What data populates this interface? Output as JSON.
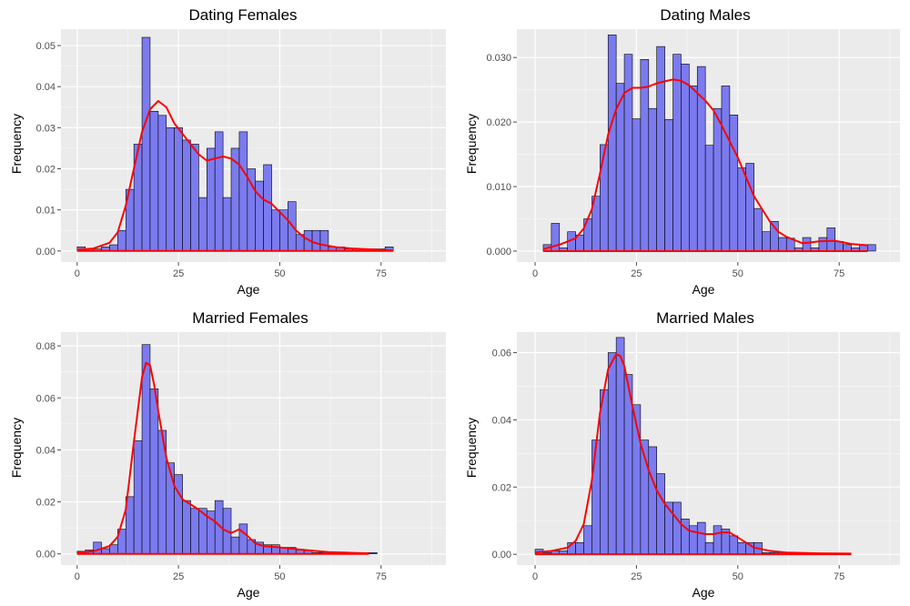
{
  "colors": {
    "panel_background": "#ebebeb",
    "grid_major": "#ffffff",
    "bar_fill": "#7b7bef",
    "bar_outline": "#000000",
    "density_line": "#ff0000",
    "tick": "#4d4d4d"
  },
  "chart_data": [
    {
      "type": "bar",
      "title": "Dating Females",
      "xlabel": "Age",
      "ylabel": "Frequency",
      "xlim": [
        -4,
        91
      ],
      "ylim": [
        -0.0027,
        0.054
      ],
      "xticks": [
        0,
        25,
        50,
        75
      ],
      "yticks": [
        0,
        0.01,
        0.02,
        0.03,
        0.04,
        0.05
      ],
      "ytick_labels": [
        "0.00",
        "0.01",
        "0.02",
        "0.03",
        "0.04",
        "0.05"
      ],
      "grid": true,
      "bin_width": 2,
      "bins_start": [
        0,
        2,
        4,
        6,
        8,
        10,
        12,
        14,
        16,
        18,
        20,
        22,
        24,
        26,
        28,
        30,
        32,
        34,
        36,
        38,
        40,
        42,
        44,
        46,
        48,
        50,
        52,
        54,
        56,
        58,
        60,
        62,
        64,
        66,
        68,
        70,
        72,
        74,
        76,
        78,
        80,
        82,
        84,
        86,
        88
      ],
      "values": [
        0.001,
        0.0005,
        0.0005,
        0.001,
        0.0015,
        0.005,
        0.015,
        0.026,
        0.052,
        0.034,
        0.033,
        0.03,
        0.03,
        0.027,
        0.026,
        0.013,
        0.025,
        0.029,
        0.013,
        0.025,
        0.029,
        0.02,
        0.017,
        0.021,
        0.01,
        0.01,
        0.012,
        0.004,
        0.005,
        0.005,
        0.005,
        0.001,
        0.001,
        0.0005,
        0.0005,
        0.0005,
        0.0005,
        0.0005,
        0.001,
        0,
        0,
        0,
        0,
        0,
        0
      ],
      "density": {
        "x": [
          0,
          4,
          8,
          10,
          12,
          14,
          16,
          18,
          20,
          22,
          24,
          26,
          28,
          30,
          32,
          34,
          36,
          38,
          40,
          42,
          44,
          46,
          48,
          50,
          52,
          54,
          56,
          58,
          60,
          64,
          68,
          72,
          76,
          78
        ],
        "y": [
          0.0003,
          0.0006,
          0.002,
          0.0045,
          0.011,
          0.02,
          0.029,
          0.0345,
          0.0365,
          0.035,
          0.031,
          0.0285,
          0.026,
          0.0235,
          0.022,
          0.0225,
          0.023,
          0.0225,
          0.021,
          0.018,
          0.0145,
          0.0125,
          0.0115,
          0.0095,
          0.0075,
          0.005,
          0.0033,
          0.0022,
          0.0016,
          0.0009,
          0.0006,
          0.0004,
          0.0002,
          0.0001
        ]
      }
    },
    {
      "type": "bar",
      "title": "Dating Males",
      "xlabel": "Age",
      "ylabel": "Frequency",
      "xlim": [
        -4.5,
        90
      ],
      "ylim": [
        -0.0017,
        0.0344
      ],
      "xticks": [
        0,
        25,
        50,
        75
      ],
      "yticks": [
        0,
        0.01,
        0.02,
        0.03
      ],
      "ytick_labels": [
        "0.000",
        "0.010",
        "0.020",
        "0.030"
      ],
      "grid": true,
      "bin_width": 2,
      "bins_start": [
        2,
        4,
        6,
        8,
        10,
        12,
        14,
        16,
        18,
        20,
        22,
        24,
        26,
        28,
        30,
        32,
        34,
        36,
        38,
        40,
        42,
        44,
        46,
        48,
        50,
        52,
        54,
        56,
        58,
        60,
        62,
        64,
        66,
        68,
        70,
        72,
        74,
        76,
        78,
        80,
        82
      ],
      "values": [
        0.001,
        0.0043,
        0.0005,
        0.003,
        0.0025,
        0.005,
        0.0085,
        0.0165,
        0.0335,
        0.026,
        0.0305,
        0.0205,
        0.0297,
        0.0221,
        0.0317,
        0.0204,
        0.0305,
        0.029,
        0.0256,
        0.0286,
        0.0164,
        0.0221,
        0.0256,
        0.0211,
        0.0129,
        0.0136,
        0.0066,
        0.003,
        0.0046,
        0.0021,
        0.002,
        0.0005,
        0.0021,
        0.0005,
        0.0021,
        0.0036,
        0.0015,
        0.001,
        0.0005,
        0.001,
        0.001
      ],
      "density": {
        "x": [
          2,
          6,
          10,
          12,
          14,
          16,
          18,
          20,
          22,
          24,
          26,
          28,
          30,
          32,
          34,
          36,
          38,
          40,
          42,
          44,
          46,
          48,
          50,
          52,
          54,
          56,
          58,
          60,
          62,
          66,
          70,
          74,
          78,
          82
        ],
        "y": [
          0.0003,
          0.001,
          0.002,
          0.0035,
          0.0065,
          0.012,
          0.018,
          0.022,
          0.0245,
          0.0253,
          0.0253,
          0.0255,
          0.026,
          0.0263,
          0.0266,
          0.0264,
          0.0257,
          0.0245,
          0.0233,
          0.0218,
          0.0195,
          0.017,
          0.0145,
          0.0115,
          0.0085,
          0.0065,
          0.0045,
          0.003,
          0.0022,
          0.0012,
          0.0015,
          0.0016,
          0.0011,
          0.0009
        ]
      }
    },
    {
      "type": "bar",
      "title": "Married Females",
      "xlabel": "Age",
      "ylabel": "Frequency",
      "xlim": [
        -4,
        91
      ],
      "ylim": [
        -0.0043,
        0.0853
      ],
      "xticks": [
        0,
        25,
        50,
        75
      ],
      "yticks": [
        0,
        0.02,
        0.04,
        0.06,
        0.08
      ],
      "ytick_labels": [
        "0.00",
        "0.02",
        "0.04",
        "0.06",
        "0.08"
      ],
      "grid": true,
      "bin_width": 2,
      "bins_start": [
        0,
        2,
        4,
        6,
        8,
        10,
        12,
        14,
        16,
        18,
        20,
        22,
        24,
        26,
        28,
        30,
        32,
        34,
        36,
        38,
        40,
        42,
        44,
        46,
        48,
        50,
        52,
        54,
        56,
        58,
        60,
        62,
        64,
        66,
        68,
        70,
        72,
        74,
        76,
        78,
        80,
        82,
        84,
        86,
        88
      ],
      "values": [
        0.001,
        0.0015,
        0.0045,
        0.002,
        0.0035,
        0.0095,
        0.022,
        0.0435,
        0.0805,
        0.0635,
        0.0475,
        0.035,
        0.0305,
        0.0205,
        0.0175,
        0.0175,
        0.0165,
        0.0205,
        0.0175,
        0.0065,
        0.0115,
        0.0055,
        0.0045,
        0.0035,
        0.0035,
        0.0025,
        0.0025,
        0.0015,
        0.0015,
        0.0005,
        0.0005,
        0.0005,
        0.0005,
        0.0005,
        0.0005,
        0.0005,
        0.0005,
        0,
        0,
        0,
        0,
        0,
        0,
        0,
        0
      ],
      "density": {
        "x": [
          0,
          4,
          8,
          10,
          12,
          14,
          16,
          17,
          18,
          19,
          20,
          22,
          24,
          26,
          28,
          30,
          32,
          34,
          36,
          38,
          40,
          42,
          44,
          46,
          50,
          56,
          62,
          68,
          72
        ],
        "y": [
          0.0005,
          0.001,
          0.003,
          0.0065,
          0.017,
          0.043,
          0.068,
          0.0735,
          0.0725,
          0.065,
          0.055,
          0.037,
          0.026,
          0.021,
          0.019,
          0.017,
          0.0145,
          0.0125,
          0.0095,
          0.008,
          0.0095,
          0.007,
          0.004,
          0.003,
          0.0025,
          0.0015,
          0.0007,
          0.0004,
          0.0002
        ]
      }
    },
    {
      "type": "bar",
      "title": "Married Males",
      "xlabel": "Age",
      "ylabel": "Frequency",
      "xlim": [
        -4.5,
        90
      ],
      "ylim": [
        -0.0032,
        0.0661
      ],
      "xticks": [
        0,
        25,
        50,
        75
      ],
      "yticks": [
        0,
        0.02,
        0.04,
        0.06
      ],
      "ytick_labels": [
        "0.00",
        "0.02",
        "0.04",
        "0.06"
      ],
      "grid": true,
      "bin_width": 2,
      "bins_start": [
        0,
        2,
        4,
        6,
        8,
        10,
        12,
        14,
        16,
        18,
        20,
        22,
        24,
        26,
        28,
        30,
        32,
        34,
        36,
        38,
        40,
        42,
        44,
        46,
        48,
        50,
        52,
        54,
        56,
        58,
        60,
        62,
        64,
        66,
        68,
        70,
        72,
        74,
        76,
        78,
        80,
        82,
        84,
        86,
        88
      ],
      "values": [
        0.0015,
        0.0005,
        0.001,
        0.001,
        0.0035,
        0.0035,
        0.0085,
        0.034,
        0.049,
        0.06,
        0.0645,
        0.0535,
        0.0445,
        0.034,
        0.032,
        0.024,
        0.0155,
        0.0155,
        0.0105,
        0.0085,
        0.0095,
        0.0035,
        0.0085,
        0.0075,
        0.0055,
        0.0035,
        0.0035,
        0.0035,
        0.0005,
        0.0005,
        0.0005,
        0.0005,
        0.0005,
        0.0005,
        0,
        0,
        0,
        0,
        0,
        0,
        0,
        0,
        0,
        0,
        0
      ],
      "density": {
        "x": [
          0,
          4,
          8,
          10,
          12,
          14,
          16,
          18,
          20,
          21,
          22,
          24,
          26,
          28,
          30,
          32,
          34,
          36,
          38,
          40,
          42,
          44,
          46,
          48,
          50,
          54,
          58,
          62,
          70,
          78
        ],
        "y": [
          0.0005,
          0.001,
          0.002,
          0.004,
          0.009,
          0.022,
          0.042,
          0.055,
          0.0595,
          0.059,
          0.056,
          0.044,
          0.033,
          0.025,
          0.019,
          0.015,
          0.012,
          0.009,
          0.007,
          0.0065,
          0.006,
          0.006,
          0.0065,
          0.0065,
          0.005,
          0.002,
          0.001,
          0.0005,
          0.0003,
          0.0002
        ]
      }
    }
  ]
}
